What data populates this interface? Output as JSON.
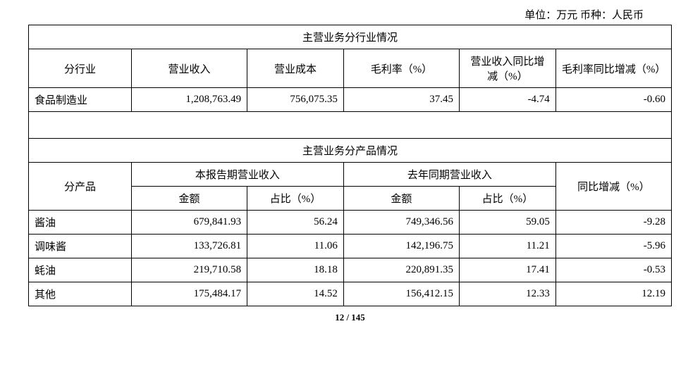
{
  "unit_label": "单位：万元  币种：人民币",
  "table1": {
    "section_title": "主营业务分行业情况",
    "headers": [
      "分行业",
      "营业收入",
      "营业成本",
      "毛利率（%）",
      "营业收入同比增减（%）",
      "毛利率同比增减（%）"
    ],
    "rows": [
      {
        "label": "食品制造业",
        "revenue": "1,208,763.49",
        "cost": "756,075.35",
        "gross_margin": "37.45",
        "rev_yoy": "-4.74",
        "gm_yoy": "-0.60"
      }
    ]
  },
  "table2": {
    "section_title": "主营业务分产品情况",
    "group_headers": {
      "product": "分产品",
      "current": "本报告期营业收入",
      "prior": "去年同期营业收入",
      "yoy": "同比增减（%）"
    },
    "sub_headers": {
      "amount": "金额",
      "percent": "占比（%）"
    },
    "rows": [
      {
        "label": "酱油",
        "cur_amt": "679,841.93",
        "cur_pct": "56.24",
        "pri_amt": "749,346.56",
        "pri_pct": "59.05",
        "yoy": "-9.28"
      },
      {
        "label": "调味酱",
        "cur_amt": "133,726.81",
        "cur_pct": "11.06",
        "pri_amt": "142,196.75",
        "pri_pct": "11.21",
        "yoy": "-5.96"
      },
      {
        "label": "蚝油",
        "cur_amt": "219,710.58",
        "cur_pct": "18.18",
        "pri_amt": "220,891.35",
        "pri_pct": "17.41",
        "yoy": "-0.53"
      },
      {
        "label": "其他",
        "cur_amt": "175,484.17",
        "cur_pct": "14.52",
        "pri_amt": "156,412.15",
        "pri_pct": "12.33",
        "yoy": "12.19"
      }
    ]
  },
  "page_number": "12 / 145",
  "colors": {
    "background": "#ffffff",
    "text": "#000000",
    "border": "#000000"
  }
}
